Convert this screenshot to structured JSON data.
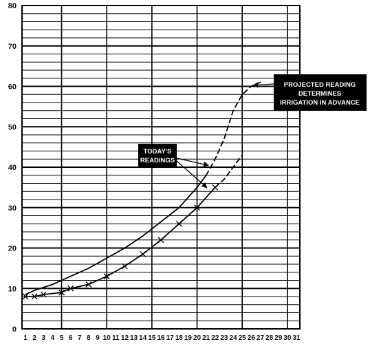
{
  "chart_data": {
    "type": "line",
    "title": "",
    "xlabel": "",
    "ylabel": "",
    "xlim": [
      1,
      31
    ],
    "ylim": [
      0,
      80
    ],
    "x_ticks": [
      1,
      2,
      3,
      4,
      5,
      6,
      7,
      8,
      9,
      10,
      11,
      12,
      13,
      14,
      15,
      16,
      17,
      18,
      19,
      20,
      21,
      22,
      23,
      24,
      25,
      26,
      27,
      28,
      29,
      30,
      31
    ],
    "y_ticks": [
      0,
      10,
      20,
      30,
      40,
      50,
      60,
      70,
      80
    ],
    "grid": true,
    "series": [
      {
        "style": "solid",
        "x": [
          1,
          2,
          4,
          6,
          8,
          10,
          12,
          14,
          16,
          18,
          20,
          21
        ],
        "y": [
          8.5,
          9.5,
          11,
          13,
          15,
          17.5,
          20,
          23,
          26.5,
          30,
          35,
          38
        ]
      },
      {
        "style": "dashed",
        "x": [
          21,
          22,
          23,
          24,
          25,
          26,
          27
        ],
        "y": [
          38,
          42,
          47,
          54,
          58,
          60,
          61
        ]
      },
      {
        "style": "solid",
        "markers": "x",
        "x": [
          1,
          2,
          3,
          5,
          6,
          8,
          10,
          12,
          14,
          16,
          18,
          20,
          22
        ],
        "y": [
          8,
          8,
          8.5,
          9,
          10,
          11,
          13,
          15.5,
          18.5,
          22,
          26,
          30,
          35
        ]
      },
      {
        "style": "dashed",
        "x": [
          22,
          23,
          24,
          25
        ],
        "y": [
          35,
          37,
          40,
          43
        ]
      }
    ],
    "annotations": [
      {
        "text_lines": [
          "TODAY'S",
          "READINGS"
        ]
      },
      {
        "text_lines": [
          "PROJECTED READING",
          "DETERMINES",
          "IRRIGATION IN ADVANCE"
        ]
      }
    ]
  }
}
